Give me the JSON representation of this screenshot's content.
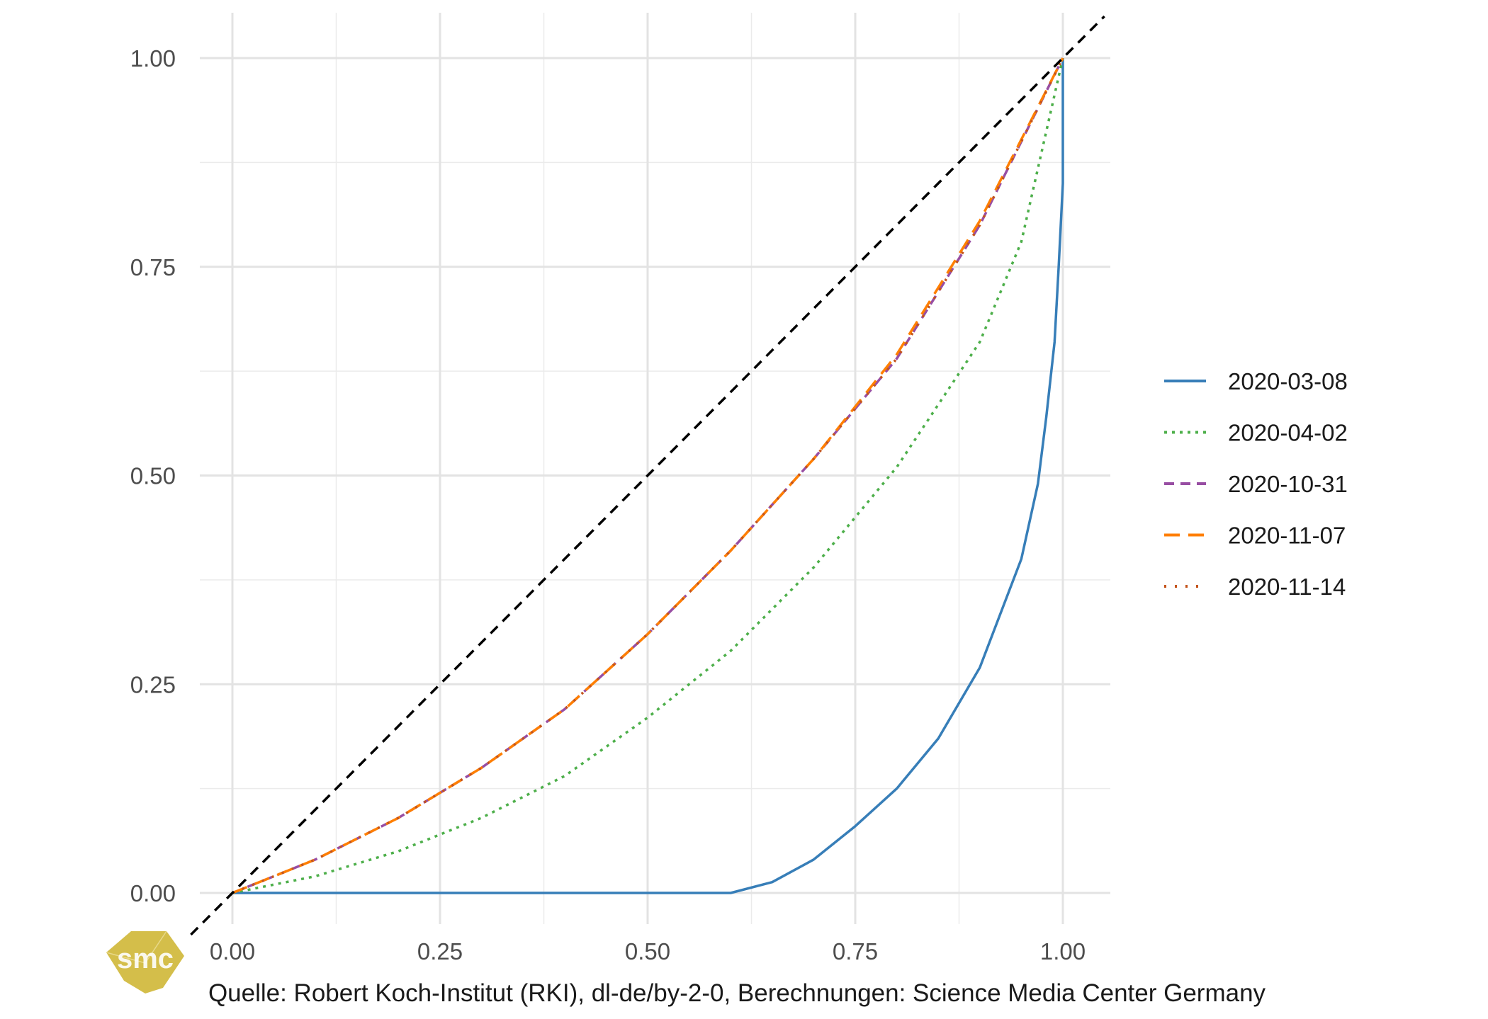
{
  "chart_data": {
    "type": "line",
    "title": "",
    "xlabel": "",
    "ylabel": "",
    "xlim": [
      -0.03,
      1.05
    ],
    "ylim": [
      -0.045,
      1.03
    ],
    "x_ticks": [
      "0.00",
      "0.25",
      "0.50",
      "0.75",
      "1.00"
    ],
    "y_ticks": [
      "0.00",
      "0.25",
      "0.50",
      "0.75",
      "1.00"
    ],
    "grid": true,
    "legend_position": "right",
    "reference_line": {
      "style": "dashed",
      "color": "#000000",
      "x": [
        -0.05,
        1.05
      ],
      "y": [
        -0.05,
        1.05
      ]
    },
    "series": [
      {
        "name": "2020-03-08",
        "color": "#377EB8",
        "dash": "solid",
        "x": [
          0,
          0.6,
          0.65,
          0.7,
          0.75,
          0.8,
          0.85,
          0.9,
          0.95,
          0.97,
          0.98,
          0.99,
          0.995,
          1.0,
          1.0
        ],
        "y": [
          0,
          0,
          0.013,
          0.04,
          0.08,
          0.125,
          0.185,
          0.27,
          0.4,
          0.49,
          0.57,
          0.66,
          0.75,
          0.85,
          1.0
        ]
      },
      {
        "name": "2020-04-02",
        "color": "#4DAF4A",
        "dash": "dotted",
        "x": [
          0,
          0.1,
          0.2,
          0.3,
          0.4,
          0.5,
          0.6,
          0.7,
          0.8,
          0.9,
          0.95,
          1.0
        ],
        "y": [
          0,
          0.02,
          0.05,
          0.09,
          0.14,
          0.21,
          0.29,
          0.39,
          0.51,
          0.66,
          0.78,
          1.0
        ]
      },
      {
        "name": "2020-10-31",
        "color": "#984EA3",
        "dash": "dashed",
        "x": [
          0,
          0.1,
          0.2,
          0.3,
          0.4,
          0.5,
          0.6,
          0.7,
          0.8,
          0.9,
          1.0
        ],
        "y": [
          0,
          0.04,
          0.09,
          0.15,
          0.22,
          0.31,
          0.41,
          0.52,
          0.64,
          0.8,
          1.0
        ]
      },
      {
        "name": "2020-11-07",
        "color": "#FF7F00",
        "dash": "longdash",
        "x": [
          0,
          0.1,
          0.2,
          0.3,
          0.4,
          0.5,
          0.6,
          0.7,
          0.8,
          0.9,
          1.0
        ],
        "y": [
          0,
          0.04,
          0.09,
          0.15,
          0.22,
          0.31,
          0.41,
          0.52,
          0.645,
          0.805,
          1.0
        ]
      },
      {
        "name": "2020-11-14",
        "color": "#C4541C",
        "dash": "dotted-sparse",
        "x": [
          0,
          0.1,
          0.2,
          0.3,
          0.4,
          0.5,
          0.6,
          0.7,
          0.8,
          0.9,
          1.0
        ],
        "y": [
          0,
          0.04,
          0.09,
          0.15,
          0.22,
          0.31,
          0.41,
          0.52,
          0.64,
          0.8,
          1.0
        ]
      }
    ],
    "caption": "Quelle: Robert Koch-Institut (RKI), dl-de/by-2-0, Berechnungen: Science Media Center Germany"
  },
  "logo": {
    "text": "smc",
    "color": "#D4BE4A"
  }
}
